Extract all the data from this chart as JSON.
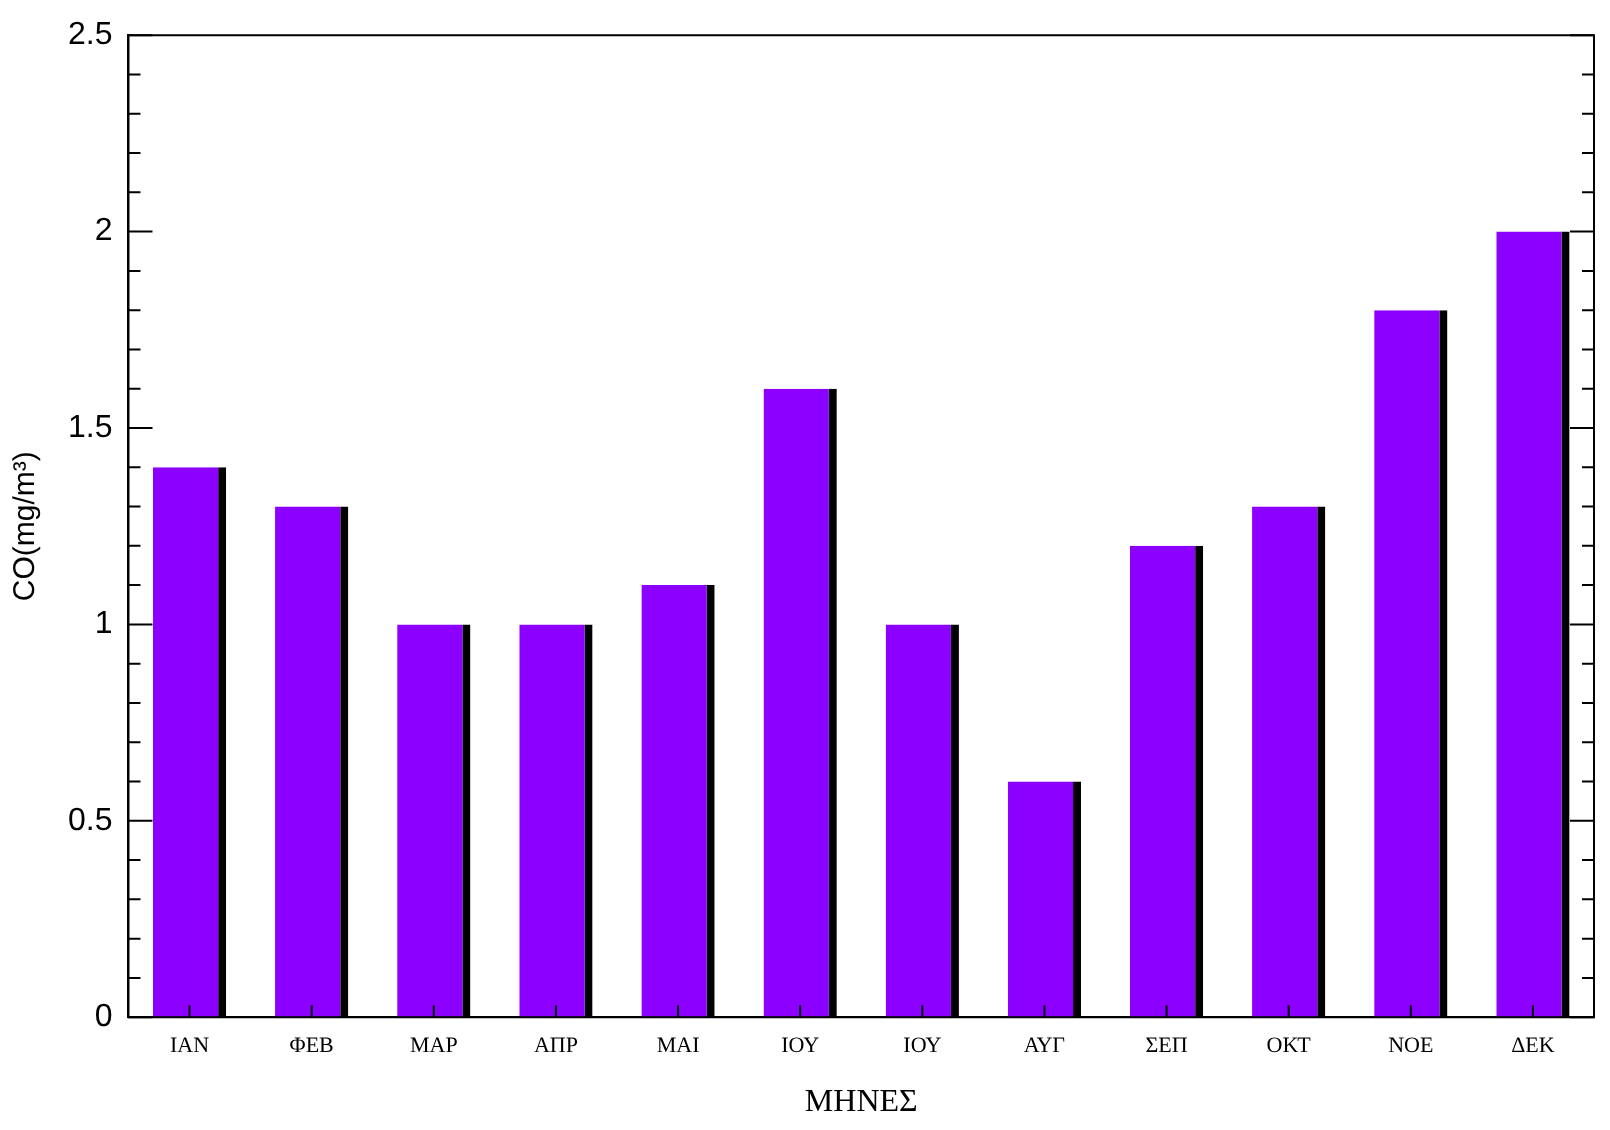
{
  "chart_data": {
    "type": "bar",
    "xlabel": "ΜΗΝΕΣ",
    "ylabel": "CO(mg/m³)",
    "categories": [
      "ΙΑΝ",
      "ΦΕΒ",
      "ΜΑΡ",
      "ΑΠΡ",
      "ΜΑΙ",
      "ΙΟΥ",
      "ΙΟΥ",
      "ΑΥΓ",
      "ΣΕΠ",
      "ΟΚΤ",
      "ΝΟΕ",
      "ΔΕΚ"
    ],
    "values": [
      1.4,
      1.3,
      1.0,
      1.0,
      1.1,
      1.6,
      1.0,
      0.6,
      1.2,
      1.3,
      1.8,
      2.0
    ],
    "color": "#8b00ff",
    "ylim": [
      0,
      2.5
    ],
    "yticks": [
      0,
      0.5,
      1,
      1.5,
      2,
      2.5
    ],
    "grid": false,
    "legend": false
  }
}
